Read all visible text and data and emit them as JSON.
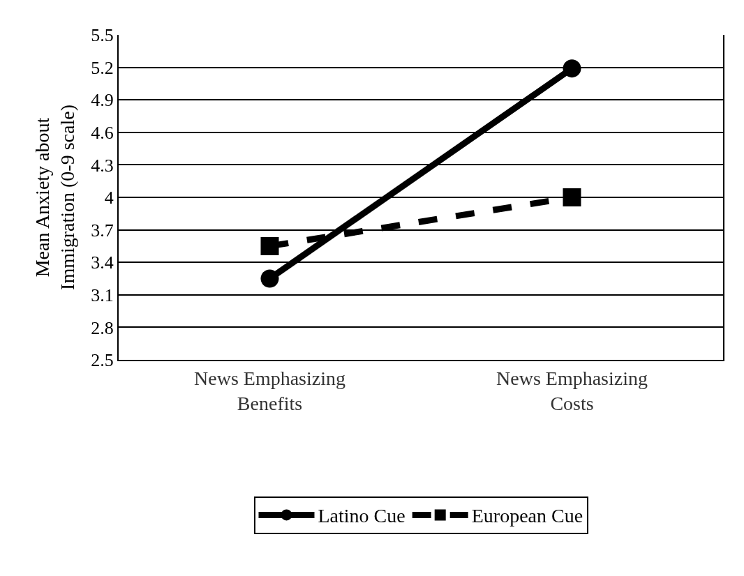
{
  "chart_data": {
    "type": "line",
    "ylabel": "Mean Anxiety about Immigration (0-9 scale)",
    "categories": [
      "News Emphasizing Benefits",
      "News Emphasizing Costs"
    ],
    "series": [
      {
        "name": "Latino Cue",
        "color": "#000000",
        "values": [
          3.25,
          5.19
        ],
        "marker": "circle",
        "line_style": "solid"
      },
      {
        "name": "European Cue",
        "color": "#000000",
        "values": [
          3.55,
          4.0
        ],
        "marker": "square",
        "line_style": "dashed"
      }
    ],
    "ylim": [
      2.5,
      5.5
    ],
    "yticks": [
      2.5,
      2.8,
      3.1,
      3.4,
      3.7,
      4,
      4.3,
      4.6,
      4.9,
      5.2,
      5.5
    ],
    "grid": "y",
    "legend": "bottom"
  }
}
